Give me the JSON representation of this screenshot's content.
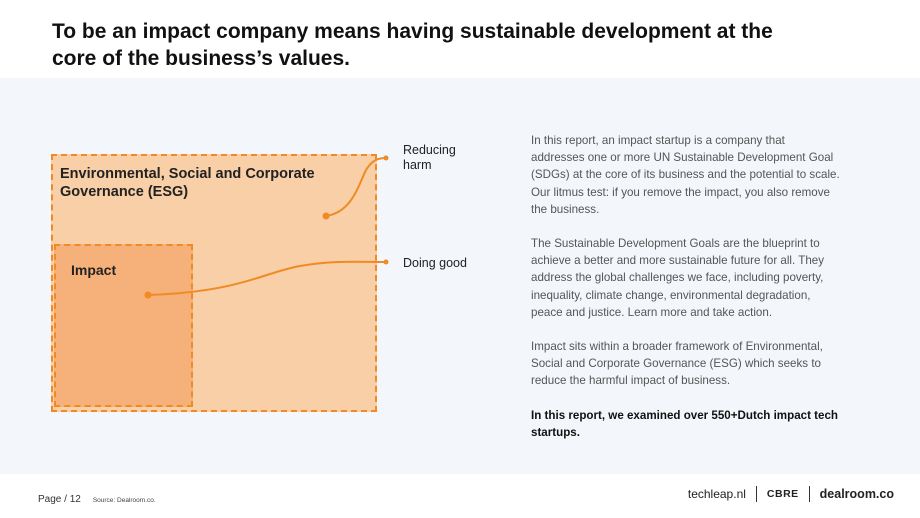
{
  "header": {
    "title": "To be an impact company means having sustainable development at the core of the business’s values."
  },
  "diagram": {
    "outer_label": "Environmental, Social and Corporate Governance (ESG)",
    "inner_label": "Impact",
    "callout_reducing": "Reducing harm",
    "callout_doing": "Doing good",
    "colors": {
      "outer_fill": "#f8cfa6",
      "inner_fill": "#f6b07a",
      "accent": "#f08a24"
    }
  },
  "body": {
    "paragraph_1": "In this report, an impact startup is a company that addresses one or more UN Sustainable Development Goal (SDGs) at the core of its business and the potential to scale. Our litmus test: if you remove the impact, you also remove the business.",
    "paragraph_2": "The Sustainable Development Goals are the blueprint to achieve a better and more sustainable future for all. They address the global challenges we face, including poverty, inequality, climate change, environmental degradation, peace and justice. Learn more and take action.",
    "paragraph_3": "Impact sits within a broader framework of Environmental, Social and Corporate Governance (ESG) which seeks to reduce the harmful impact of business.",
    "paragraph_4": "In this report, we examined over 550+Dutch impact tech startups."
  },
  "footer": {
    "page_label": "Page / 12",
    "source": "Source: Dealroom.co.",
    "brand_1": "techleap.nl",
    "brand_2": "CBRE",
    "brand_3": "dealroom.co"
  }
}
